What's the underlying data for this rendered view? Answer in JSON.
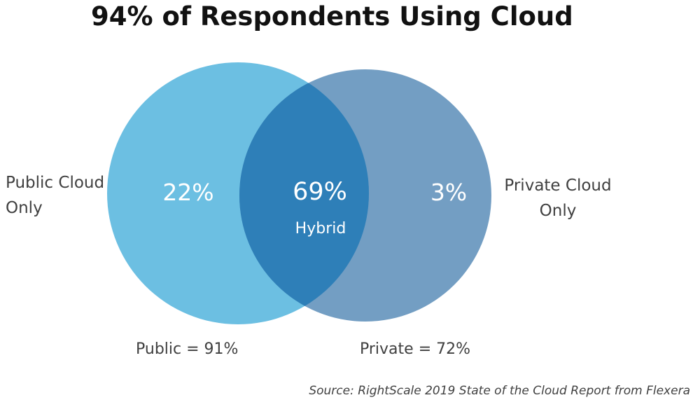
{
  "title": "94% of Respondents Using Cloud",
  "venn": {
    "sets": [
      {
        "name": "Public",
        "label_line1": "Public Cloud",
        "label_line2": "Only",
        "only_value": "22%",
        "total_label": "Public = 91%",
        "color": "#6cbfe2"
      },
      {
        "name": "Private",
        "label_line1": "Private Cloud",
        "label_line2": "Only",
        "only_value": "3%",
        "total_label": "Private = 72%",
        "color": "#5b8db9"
      }
    ],
    "overlap": {
      "value": "69%",
      "label": "Hybrid",
      "color": "#2e7fb8"
    }
  },
  "source": "Source: RightScale 2019 State of the Cloud Report from Flexera"
}
